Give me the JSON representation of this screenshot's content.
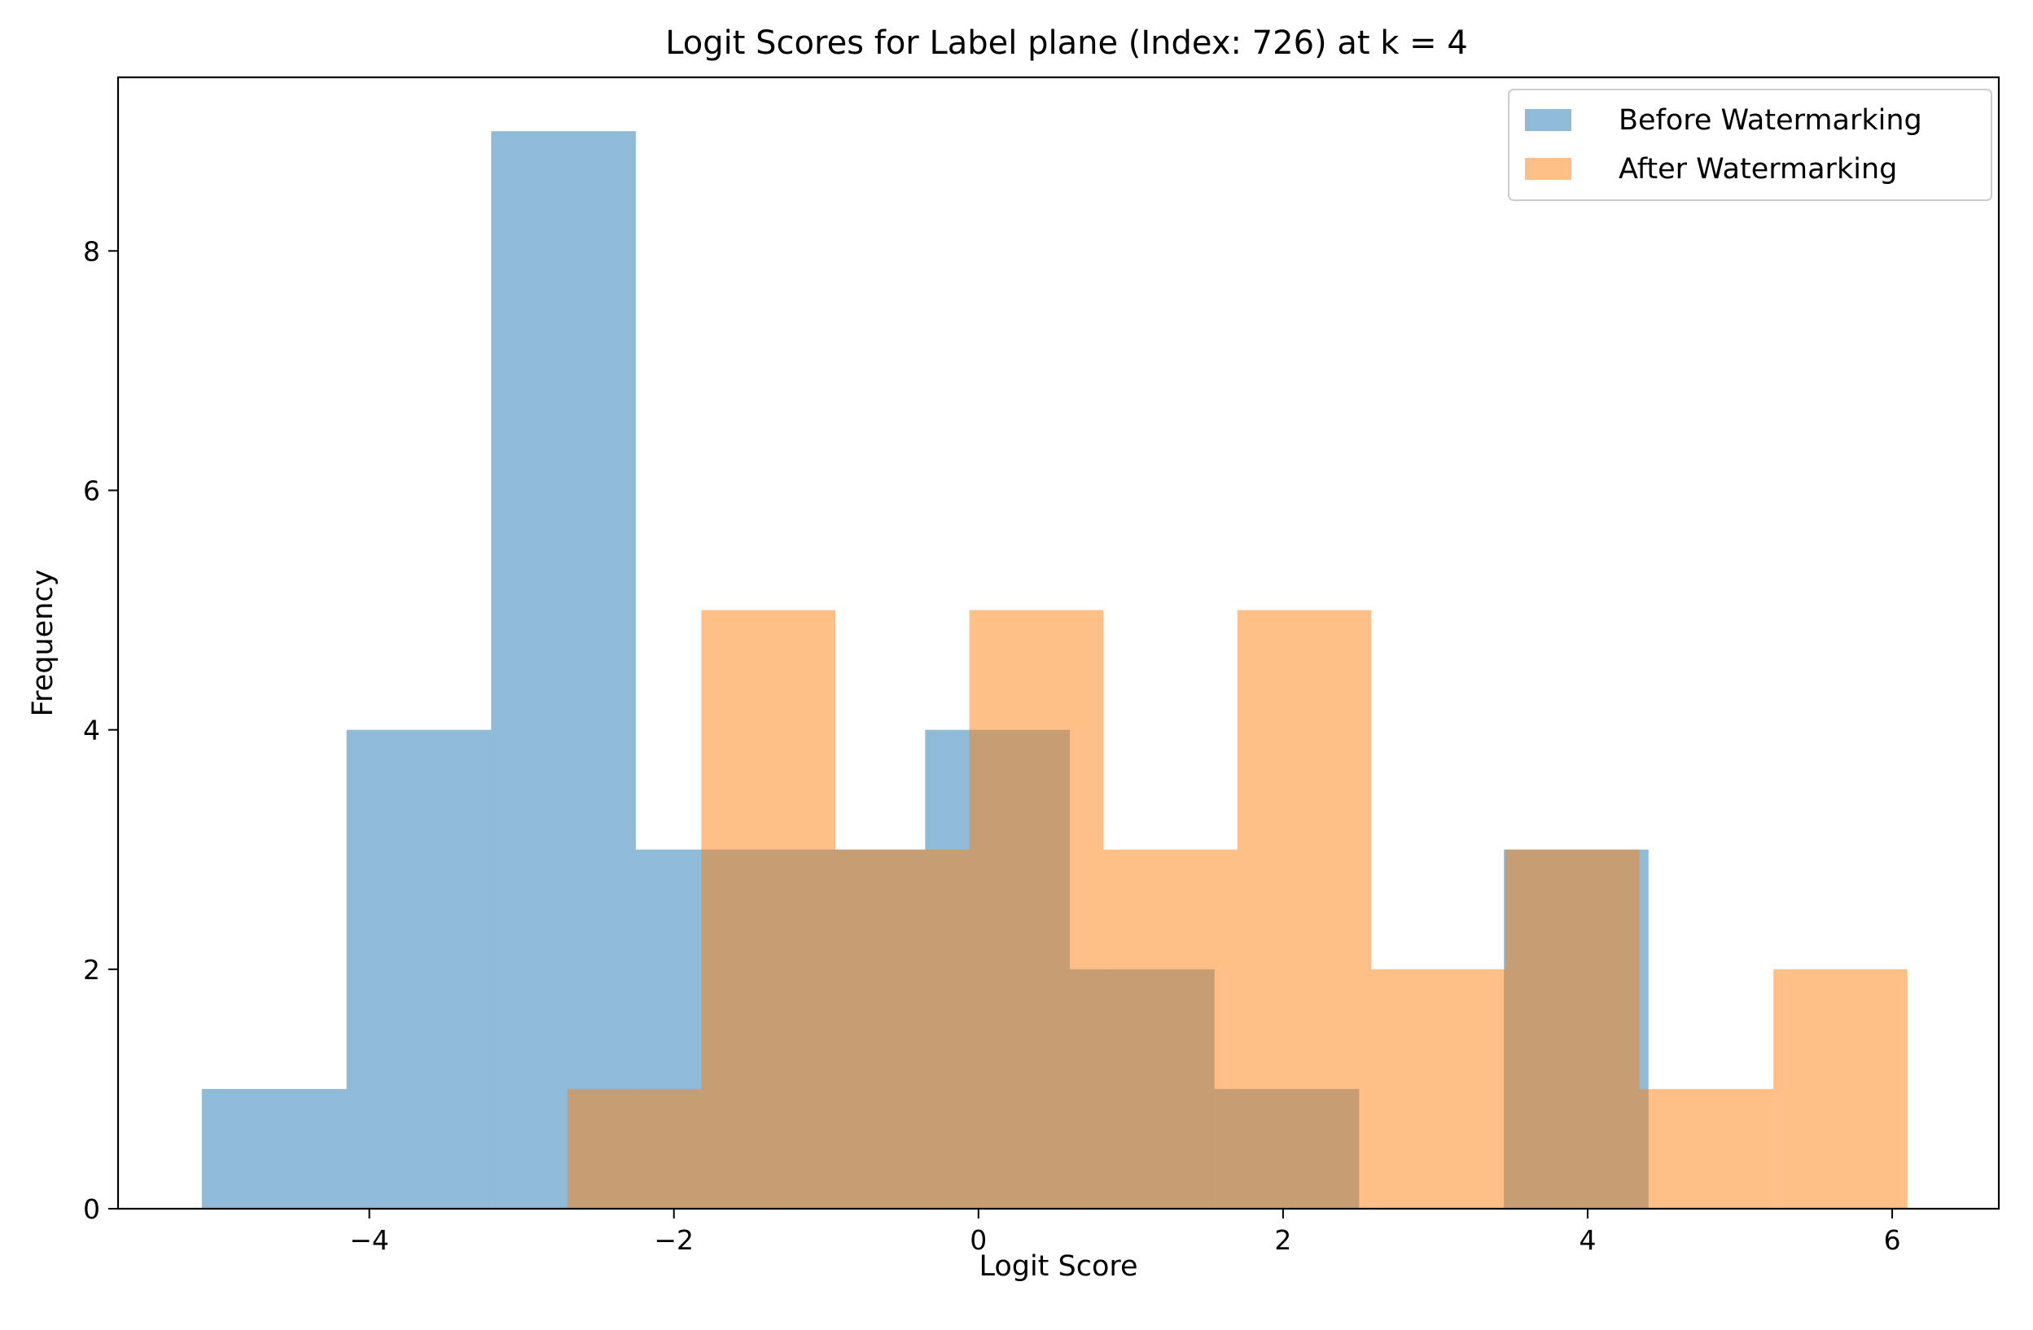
{
  "chart_data": {
    "type": "bar",
    "title": "Logit Scores for Label plane (Index: 726) at k = 4",
    "xlabel": "Logit Score",
    "ylabel": "Frequency",
    "xlim": [
      -5.65,
      6.7
    ],
    "ylim": [
      0,
      9.45
    ],
    "x_ticks": [
      -4,
      -2,
      0,
      2,
      4,
      6
    ],
    "x_tick_labels": [
      "−4",
      "−2",
      "0",
      "2",
      "4",
      "6"
    ],
    "y_ticks": [
      0,
      2,
      4,
      6,
      8
    ],
    "y_tick_labels": [
      "0",
      "2",
      "4",
      "6",
      "8"
    ],
    "grid": false,
    "legend_position": "top-right",
    "series": [
      {
        "name": "Before Watermarking",
        "color": "#1f77b4",
        "opacity": 0.5,
        "bins": [
          [
            -5.1,
            -4.15,
            1
          ],
          [
            -4.15,
            -3.2,
            4
          ],
          [
            -3.2,
            -2.25,
            9
          ],
          [
            -2.25,
            -1.3,
            3
          ],
          [
            -1.3,
            -0.35,
            3
          ],
          [
            -0.35,
            0.6,
            4
          ],
          [
            0.6,
            1.55,
            2
          ],
          [
            1.55,
            2.5,
            1
          ],
          [
            2.5,
            3.45,
            0
          ],
          [
            3.45,
            4.4,
            3
          ]
        ]
      },
      {
        "name": "After Watermarking",
        "color": "#ff7f0e",
        "opacity": 0.5,
        "bins": [
          [
            -2.7,
            -1.82,
            1
          ],
          [
            -1.82,
            -0.94,
            5
          ],
          [
            -0.94,
            -0.06,
            3
          ],
          [
            -0.06,
            0.82,
            5
          ],
          [
            0.82,
            1.7,
            3
          ],
          [
            1.7,
            2.58,
            5
          ],
          [
            2.58,
            3.46,
            2
          ],
          [
            3.46,
            4.34,
            3
          ],
          [
            4.34,
            5.22,
            1
          ],
          [
            5.22,
            6.1,
            2
          ]
        ]
      }
    ]
  }
}
